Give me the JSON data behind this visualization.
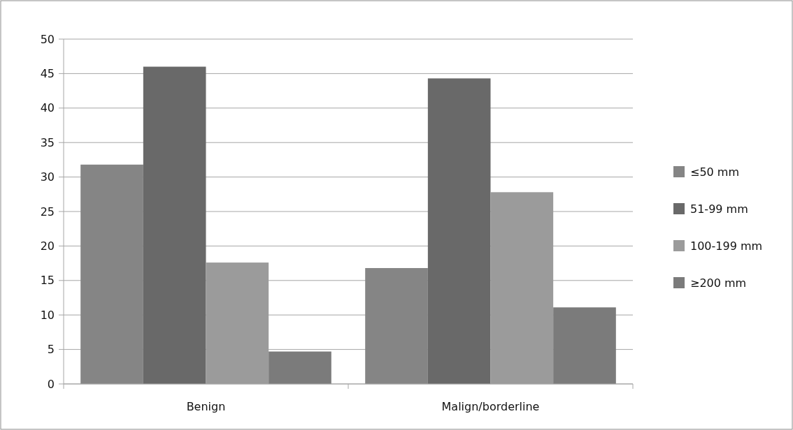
{
  "chart_data": {
    "type": "bar",
    "categories": [
      "Benign",
      "Malign/borderline"
    ],
    "series": [
      {
        "name": "≤50 mm",
        "color": "#858585",
        "values": [
          31.8,
          16.8
        ]
      },
      {
        "name": "51-99 mm",
        "color": "#696969",
        "values": [
          46.0,
          44.3
        ]
      },
      {
        "name": "100-199 mm",
        "color": "#9b9b9b",
        "values": [
          17.6,
          27.8
        ]
      },
      {
        "name": "≥200 mm",
        "color": "#7b7b7b",
        "values": [
          4.7,
          11.1
        ]
      }
    ],
    "ylim": [
      0,
      50
    ],
    "yticks": [
      0,
      5,
      10,
      15,
      20,
      25,
      30,
      35,
      40,
      45,
      50
    ],
    "grid": "y",
    "legend": "right"
  }
}
